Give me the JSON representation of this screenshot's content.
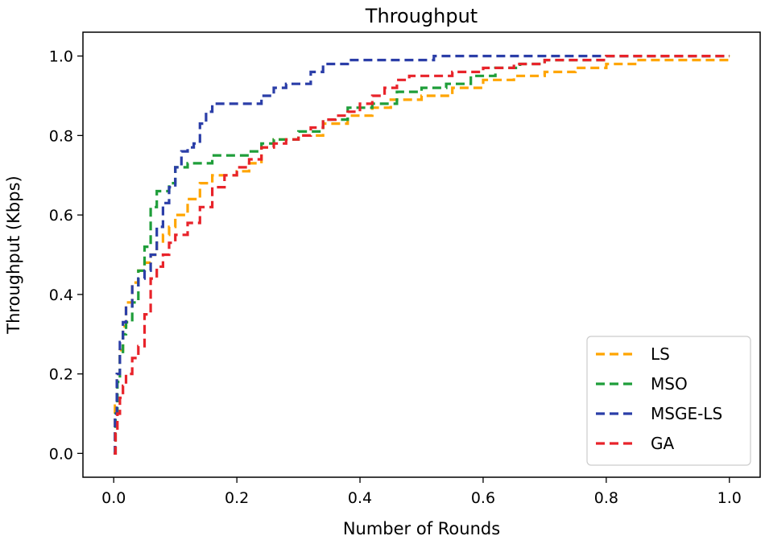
{
  "chart_data": {
    "type": "line",
    "title": "Throughput",
    "xlabel": "Number of Rounds",
    "ylabel": "Throughput (Kbps)",
    "xlim": [
      -0.05,
      1.05
    ],
    "ylim": [
      -0.06,
      1.06
    ],
    "xticks": [
      "0.0",
      "0.2",
      "0.4",
      "0.6",
      "0.8",
      "1.0"
    ],
    "yticks": [
      "0.0",
      "0.2",
      "0.4",
      "0.6",
      "0.8",
      "1.0"
    ],
    "grid": false,
    "legend_position": "lower right",
    "line_style": "dashed",
    "series": [
      {
        "name": "LS",
        "color": "#ffa500",
        "x": [
          0.0,
          0.002,
          0.005,
          0.01,
          0.015,
          0.02,
          0.03,
          0.04,
          0.05,
          0.06,
          0.07,
          0.08,
          0.09,
          0.1,
          0.12,
          0.14,
          0.16,
          0.18,
          0.2,
          0.22,
          0.24,
          0.26,
          0.3,
          0.34,
          0.38,
          0.42,
          0.45,
          0.5,
          0.55,
          0.6,
          0.65,
          0.7,
          0.75,
          0.8,
          0.85,
          0.9,
          0.95,
          1.0
        ],
        "y": [
          0.0,
          0.12,
          0.2,
          0.26,
          0.32,
          0.38,
          0.43,
          0.46,
          0.48,
          0.5,
          0.53,
          0.55,
          0.57,
          0.6,
          0.64,
          0.68,
          0.7,
          0.7,
          0.71,
          0.73,
          0.77,
          0.79,
          0.8,
          0.83,
          0.85,
          0.87,
          0.89,
          0.9,
          0.92,
          0.94,
          0.95,
          0.96,
          0.97,
          0.98,
          0.99,
          0.99,
          0.99,
          1.0
        ]
      },
      {
        "name": "MSO",
        "color": "#1f9e3a",
        "x": [
          0.0,
          0.003,
          0.006,
          0.01,
          0.015,
          0.02,
          0.03,
          0.04,
          0.05,
          0.06,
          0.07,
          0.08,
          0.09,
          0.1,
          0.12,
          0.14,
          0.16,
          0.2,
          0.22,
          0.24,
          0.26,
          0.3,
          0.34,
          0.38,
          0.42,
          0.46,
          0.5,
          0.54,
          0.58,
          0.62,
          0.66,
          0.7,
          0.75,
          0.8,
          0.85,
          0.9,
          0.95,
          1.0
        ],
        "y": [
          0.0,
          0.1,
          0.18,
          0.25,
          0.3,
          0.33,
          0.38,
          0.46,
          0.52,
          0.62,
          0.66,
          0.66,
          0.68,
          0.72,
          0.73,
          0.73,
          0.75,
          0.75,
          0.76,
          0.78,
          0.79,
          0.81,
          0.84,
          0.87,
          0.88,
          0.91,
          0.92,
          0.93,
          0.95,
          0.97,
          0.98,
          0.99,
          0.99,
          1.0,
          1.0,
          1.0,
          1.0,
          1.0
        ]
      },
      {
        "name": "MSGE-LS",
        "color": "#2b3ea8",
        "x": [
          0.0,
          0.002,
          0.005,
          0.01,
          0.015,
          0.02,
          0.03,
          0.04,
          0.05,
          0.06,
          0.07,
          0.08,
          0.09,
          0.1,
          0.11,
          0.12,
          0.13,
          0.14,
          0.15,
          0.16,
          0.18,
          0.2,
          0.22,
          0.24,
          0.26,
          0.28,
          0.3,
          0.32,
          0.34,
          0.36,
          0.38,
          0.4,
          0.45,
          0.5,
          0.52,
          0.56,
          0.6,
          0.7,
          0.8,
          0.9,
          0.95,
          1.0
        ],
        "y": [
          0.0,
          0.1,
          0.2,
          0.28,
          0.33,
          0.37,
          0.42,
          0.44,
          0.46,
          0.5,
          0.57,
          0.63,
          0.67,
          0.72,
          0.76,
          0.77,
          0.78,
          0.83,
          0.86,
          0.88,
          0.88,
          0.88,
          0.88,
          0.9,
          0.92,
          0.93,
          0.93,
          0.96,
          0.98,
          0.98,
          0.99,
          0.99,
          0.99,
          0.99,
          1.0,
          1.0,
          1.0,
          1.0,
          1.0,
          1.0,
          1.0,
          1.0
        ]
      },
      {
        "name": "GA",
        "color": "#e8232a",
        "x": [
          0.0,
          0.003,
          0.006,
          0.01,
          0.015,
          0.02,
          0.03,
          0.04,
          0.05,
          0.06,
          0.07,
          0.08,
          0.09,
          0.1,
          0.12,
          0.14,
          0.16,
          0.18,
          0.2,
          0.22,
          0.24,
          0.26,
          0.28,
          0.3,
          0.32,
          0.34,
          0.36,
          0.38,
          0.4,
          0.42,
          0.44,
          0.46,
          0.48,
          0.5,
          0.55,
          0.6,
          0.65,
          0.7,
          0.75,
          0.8,
          0.9,
          1.0
        ],
        "y": [
          0.0,
          0.05,
          0.1,
          0.14,
          0.17,
          0.2,
          0.24,
          0.27,
          0.35,
          0.44,
          0.47,
          0.5,
          0.53,
          0.55,
          0.58,
          0.62,
          0.67,
          0.7,
          0.72,
          0.74,
          0.77,
          0.78,
          0.79,
          0.8,
          0.82,
          0.84,
          0.85,
          0.86,
          0.88,
          0.9,
          0.92,
          0.94,
          0.95,
          0.95,
          0.96,
          0.97,
          0.98,
          0.99,
          0.99,
          1.0,
          1.0,
          1.0
        ]
      }
    ]
  }
}
